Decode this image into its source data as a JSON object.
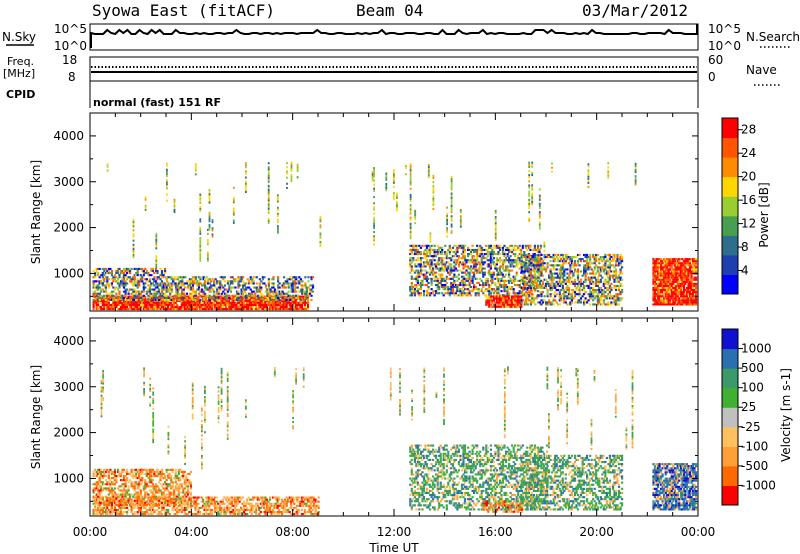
{
  "header": {
    "title_left": "Syowa East (fitACF)",
    "title_center": "Beam 04",
    "title_right": "03/Mar/2012"
  },
  "top_panels": {
    "nsky_label": "N.Sky",
    "nsky_ticks": [
      "10^5",
      "10^0"
    ],
    "nsearch_label": "N.Search",
    "nsearch_ticks": [
      "10^5",
      "10^0"
    ],
    "freq_label": "Freq.",
    "freq_unit": "[MHz]",
    "freq_ticks": [
      "18",
      "8"
    ],
    "nave_label": "Nave",
    "nave_ticks": [
      "60",
      "0"
    ],
    "cpid_label": "CPID",
    "mode_text": "normal (fast) 151 RF"
  },
  "colors": {
    "power": [
      "#0000ff",
      "#1e3fb0",
      "#2d6e8c",
      "#46a050",
      "#9acd32",
      "#ffd700",
      "#ff8c00",
      "#ff5500",
      "#ff0000"
    ],
    "velocity": [
      "#ff0000",
      "#ff6a00",
      "#ff9f3a",
      "#ffc060",
      "#c0c0c0",
      "#40b030",
      "#3c9a6a",
      "#2a6fb0",
      "#1010d0"
    ]
  },
  "chart_data": [
    {
      "type": "heatmap",
      "name": "power",
      "xlabel": "Time UT",
      "ylabel": "Slant Range [km]",
      "xlim": [
        0,
        24
      ],
      "ylim": [
        180,
        4500
      ],
      "x_ticks": [
        "00:00",
        "04:00",
        "08:00",
        "12:00",
        "16:00",
        "20:00",
        "00:00"
      ],
      "y_ticks": [
        1000,
        2000,
        3000,
        4000
      ],
      "colorbar": {
        "label": "Power [dB]",
        "ticks": [
          4,
          8,
          12,
          16,
          20,
          24,
          28
        ],
        "range": [
          0,
          30
        ]
      },
      "regions": [
        {
          "t0": 0.1,
          "t1": 8.6,
          "r0": 200,
          "r1": 500,
          "level": "high"
        },
        {
          "t0": 0.1,
          "t1": 3.0,
          "r0": 400,
          "r1": 1100,
          "level": "mixed"
        },
        {
          "t0": 3.0,
          "t1": 8.8,
          "r0": 400,
          "r1": 900,
          "level": "mixed"
        },
        {
          "t0": 0.3,
          "t1": 9.2,
          "r0": 1100,
          "r1": 3400,
          "level": "sparse"
        },
        {
          "t0": 12.6,
          "t1": 17.8,
          "r0": 500,
          "r1": 1600,
          "level": "mixed"
        },
        {
          "t0": 15.6,
          "t1": 17.0,
          "r0": 250,
          "r1": 500,
          "level": "high"
        },
        {
          "t0": 17.0,
          "t1": 21.0,
          "r0": 300,
          "r1": 1400,
          "level": "mixed"
        },
        {
          "t0": 11.0,
          "t1": 21.5,
          "r0": 1400,
          "r1": 3400,
          "level": "sparse"
        },
        {
          "t0": 22.2,
          "t1": 23.9,
          "r0": 300,
          "r1": 1300,
          "level": "high"
        }
      ]
    },
    {
      "type": "heatmap",
      "name": "velocity",
      "xlabel": "Time UT",
      "ylabel": "Slant Range [km]",
      "xlim": [
        0,
        24
      ],
      "ylim": [
        180,
        4500
      ],
      "x_ticks": [
        "00:00",
        "04:00",
        "08:00",
        "12:00",
        "16:00",
        "20:00",
        "00:00"
      ],
      "y_ticks": [
        1000,
        2000,
        3000,
        4000
      ],
      "colorbar": {
        "label": "Velocity [m s-1]",
        "ticks": [
          "1000",
          "500",
          "100",
          "25",
          "-25",
          "-100",
          "-500",
          "-1000"
        ]
      },
      "regions": [
        {
          "t0": 0.1,
          "t1": 9.0,
          "r0": 200,
          "r1": 600,
          "level": "negative"
        },
        {
          "t0": 0.1,
          "t1": 4.0,
          "r0": 400,
          "r1": 1200,
          "level": "negative"
        },
        {
          "t0": 0.3,
          "t1": 9.2,
          "r0": 1100,
          "r1": 3400,
          "level": "sparse"
        },
        {
          "t0": 12.6,
          "t1": 18.0,
          "r0": 300,
          "r1": 1700,
          "level": "positive"
        },
        {
          "t0": 15.5,
          "t1": 17.0,
          "r0": 250,
          "r1": 500,
          "level": "negative"
        },
        {
          "t0": 17.0,
          "t1": 21.0,
          "r0": 300,
          "r1": 1500,
          "level": "positive"
        },
        {
          "t0": 11.0,
          "t1": 21.5,
          "r0": 1400,
          "r1": 3400,
          "level": "sparse"
        },
        {
          "t0": 22.2,
          "t1": 23.9,
          "r0": 300,
          "r1": 1300,
          "level": "strong_positive"
        }
      ]
    }
  ]
}
